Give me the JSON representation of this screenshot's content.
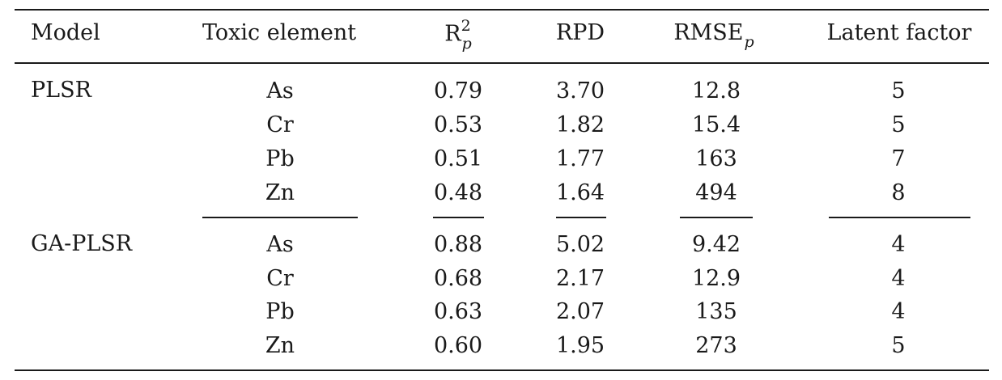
{
  "table": {
    "headers": {
      "model": "Model",
      "element": "Toxic element",
      "r2_base": "R",
      "r2_sup": "2",
      "r2_sub": "p",
      "rpd": "RPD",
      "rmse_base": "RMSE",
      "rmse_sub": "p",
      "latent": "Latent factor"
    },
    "groups": [
      {
        "model": "PLSR",
        "rows": [
          {
            "element": "As",
            "r2": "0.79",
            "rpd": "3.70",
            "rmse": "12.8",
            "latent": "5"
          },
          {
            "element": "Cr",
            "r2": "0.53",
            "rpd": "1.82",
            "rmse": "15.4",
            "latent": "5"
          },
          {
            "element": "Pb",
            "r2": "0.51",
            "rpd": "1.77",
            "rmse": "163",
            "latent": "7"
          },
          {
            "element": "Zn",
            "r2": "0.48",
            "rpd": "1.64",
            "rmse": "494",
            "latent": "8"
          }
        ]
      },
      {
        "model": "GA-PLSR",
        "rows": [
          {
            "element": "As",
            "r2": "0.88",
            "rpd": "5.02",
            "rmse": "9.42",
            "latent": "4"
          },
          {
            "element": "Cr",
            "r2": "0.68",
            "rpd": "2.17",
            "rmse": "12.9",
            "latent": "4"
          },
          {
            "element": "Pb",
            "r2": "0.63",
            "rpd": "2.07",
            "rmse": "135",
            "latent": "4"
          },
          {
            "element": "Zn",
            "r2": "0.60",
            "rpd": "1.95",
            "rmse": "273",
            "latent": "5"
          }
        ]
      }
    ]
  }
}
